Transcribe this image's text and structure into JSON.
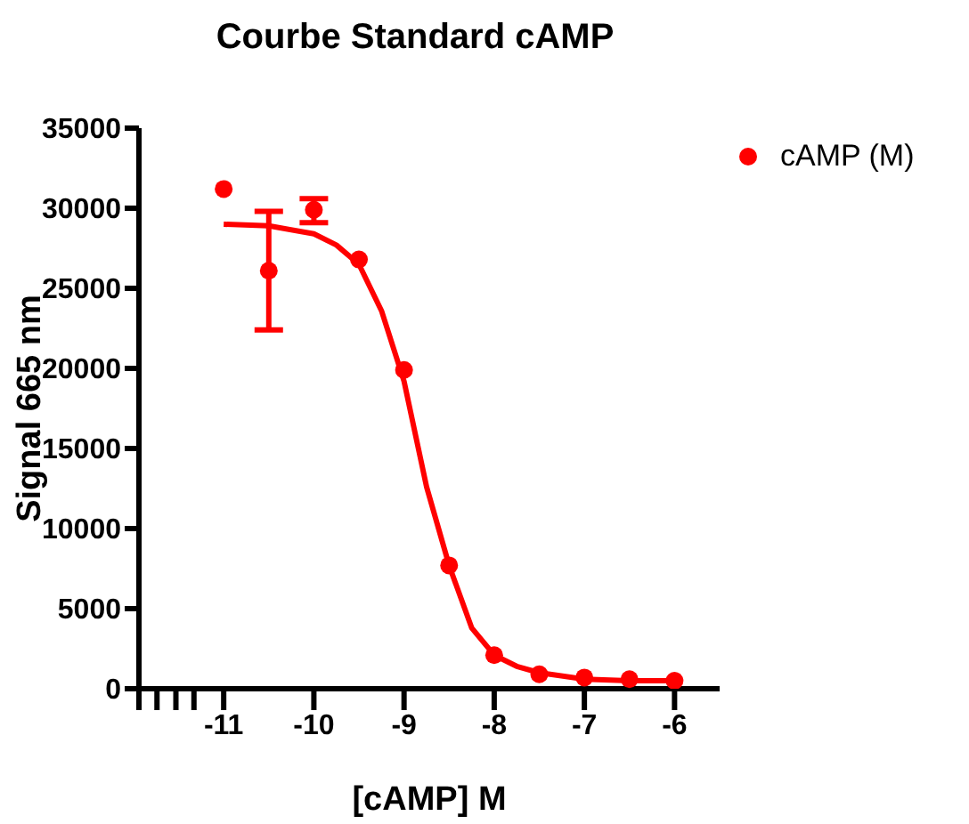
{
  "chart_data": {
    "type": "scatter",
    "title": "Courbe Standard cAMP",
    "xlabel": "[cAMP] M",
    "ylabel": "Signal 665 nm",
    "xlim": [
      -11.94,
      -5.5
    ],
    "xticks": [
      {
        "value": -11.94,
        "label": null
      },
      {
        "value": -11.74,
        "label": null
      },
      {
        "value": -11.53,
        "label": null
      },
      {
        "value": -11.33,
        "label": null
      },
      -11,
      -10,
      -9,
      -8,
      -7,
      -6
    ],
    "ylim": [
      0,
      35000
    ],
    "yticks": [
      0,
      5000,
      10000,
      15000,
      20000,
      25000,
      30000,
      35000
    ],
    "grid": false,
    "legend": "top right",
    "marker": "circle",
    "series": [
      {
        "name": "cAMP (M)",
        "type": "scatter",
        "color": "#ff0000",
        "x": [
          -11,
          -10.5,
          -10,
          -9.5,
          -9,
          -8.5,
          -8,
          -7.5,
          -7,
          -6.5,
          -6
        ],
        "values": [
          31200,
          26100,
          29900,
          26800,
          19900,
          7700,
          2100,
          900,
          700,
          600,
          500
        ],
        "errors": [
          null,
          [
            22400,
            29800
          ],
          [
            29100,
            30600
          ],
          null,
          null,
          null,
          null,
          null,
          null,
          null,
          null
        ]
      },
      {
        "type": "line",
        "color": "#ff0000",
        "line_style": "solid",
        "marker": "none",
        "x": [
          -11,
          -10.5,
          -10,
          -9.75,
          -9.5,
          -9.25,
          -9,
          -8.75,
          -8.5,
          -8.25,
          -8,
          -7.75,
          -7.5,
          -7,
          -6.5,
          -6
        ],
        "values": [
          29000,
          28900,
          28400,
          27700,
          26500,
          23600,
          19200,
          12600,
          7700,
          3800,
          2100,
          1400,
          1000,
          600,
          500,
          500
        ]
      }
    ]
  }
}
